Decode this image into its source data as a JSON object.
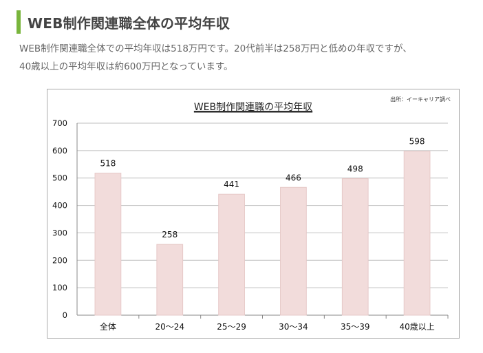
{
  "section": {
    "heading": "WEB制作関連職全体の平均年収",
    "intro_line1": "WEB制作関連職全体での平均年収は518万円です。20代前半は258万円と低めの年収ですが、",
    "intro_line2": "40歳以上の平均年収は約600万円となっています。"
  },
  "colors": {
    "accent": "#79b53c",
    "bar_fill": "#f2dcdb",
    "bar_stroke": "#e6c9c8",
    "grid": "#bfbfbf"
  },
  "chart_data": {
    "type": "bar",
    "title": "WEB制作関連職の平均年収",
    "source_note": "出所：イーキャリア調べ",
    "categories": [
      "全体",
      "20〜24",
      "25〜29",
      "30〜34",
      "35〜39",
      "40歳以上"
    ],
    "values": [
      518,
      258,
      441,
      466,
      498,
      598
    ],
    "value_labels": [
      "518",
      "258",
      "441",
      "466",
      "498",
      "598"
    ],
    "y_ticks": [
      "0",
      "100",
      "200",
      "300",
      "400",
      "500",
      "600",
      "700"
    ],
    "ylim": [
      0,
      700
    ],
    "grid": true,
    "legend": false,
    "xlabel": "",
    "ylabel": ""
  }
}
